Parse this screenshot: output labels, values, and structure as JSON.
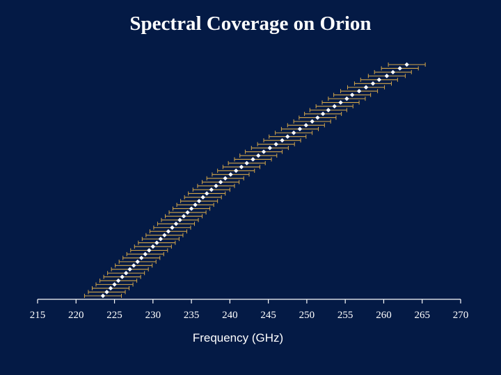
{
  "slide": {
    "title": "Spectral Coverage on Orion"
  },
  "chart_data": {
    "type": "scatter",
    "title": "Spectral Coverage on Orion",
    "xlabel": "Frequency (GHz)",
    "ylabel": "",
    "xlim": [
      215,
      270
    ],
    "x_ticks": [
      "215",
      "220",
      "225",
      "230",
      "235",
      "240",
      "245",
      "250",
      "255",
      "260",
      "265",
      "270"
    ],
    "grid": false,
    "point_color": "#ffffff",
    "errorbar_color": "#d4a64a",
    "band_halfwidth_ghz": 2.4,
    "points": [
      {
        "x": 263.0
      },
      {
        "x": 262.1
      },
      {
        "x": 261.2
      },
      {
        "x": 260.4
      },
      {
        "x": 259.4
      },
      {
        "x": 258.6
      },
      {
        "x": 257.7
      },
      {
        "x": 256.8
      },
      {
        "x": 255.9
      },
      {
        "x": 255.2
      },
      {
        "x": 254.4
      },
      {
        "x": 253.6
      },
      {
        "x": 252.8
      },
      {
        "x": 252.1
      },
      {
        "x": 251.4
      },
      {
        "x": 250.7
      },
      {
        "x": 249.9
      },
      {
        "x": 249.1
      },
      {
        "x": 248.3
      },
      {
        "x": 247.5
      },
      {
        "x": 246.8
      },
      {
        "x": 246.0
      },
      {
        "x": 245.2
      },
      {
        "x": 244.4
      },
      {
        "x": 243.7
      },
      {
        "x": 243.0
      },
      {
        "x": 242.2
      },
      {
        "x": 241.5
      },
      {
        "x": 240.8
      },
      {
        "x": 240.1
      },
      {
        "x": 239.4
      },
      {
        "x": 238.8
      },
      {
        "x": 238.2
      },
      {
        "x": 237.6
      },
      {
        "x": 237.0
      },
      {
        "x": 236.5
      },
      {
        "x": 236.0
      },
      {
        "x": 235.5
      },
      {
        "x": 235.0
      },
      {
        "x": 234.5
      },
      {
        "x": 234.0
      },
      {
        "x": 233.5
      },
      {
        "x": 233.0
      },
      {
        "x": 232.5
      },
      {
        "x": 232.0
      },
      {
        "x": 231.5
      },
      {
        "x": 231.0
      },
      {
        "x": 230.5
      },
      {
        "x": 230.0
      },
      {
        "x": 229.5
      },
      {
        "x": 229.0
      },
      {
        "x": 228.5
      },
      {
        "x": 228.0
      },
      {
        "x": 227.5
      },
      {
        "x": 227.0
      },
      {
        "x": 226.5
      },
      {
        "x": 226.0
      },
      {
        "x": 225.5
      },
      {
        "x": 225.0
      },
      {
        "x": 224.5
      },
      {
        "x": 224.0
      },
      {
        "x": 223.5
      }
    ]
  }
}
